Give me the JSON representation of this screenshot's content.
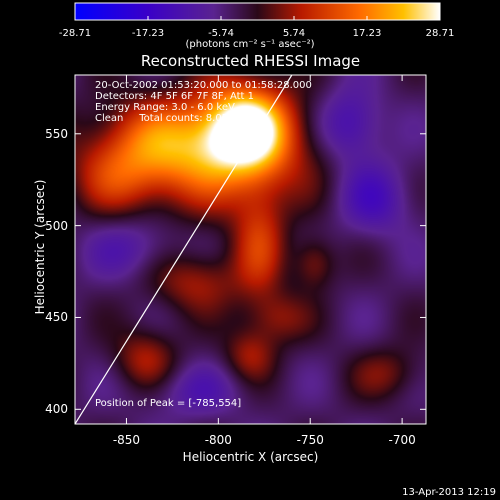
{
  "chart_data": {
    "type": "heatmap",
    "title": "Reconstructed RHESSI Image",
    "xlabel": "Heliocentric X (arcsec)",
    "ylabel": "Heliocentric Y (arcsec)",
    "xlim": [
      -878,
      -687
    ],
    "ylim": [
      392,
      582
    ],
    "xticks": [
      -850,
      -800,
      -750,
      -700
    ],
    "yticks": [
      400,
      450,
      500,
      550
    ],
    "colorbar": {
      "ticks": [
        "-28.71",
        "-17.23",
        "-5.74",
        "5.74",
        "17.23",
        "28.71"
      ],
      "units": "(photons cm⁻² s⁻¹ asec⁻²)",
      "range": [
        -28.71,
        28.71
      ]
    },
    "annotations": [
      "20-Oct-2002 01:53:20.000 to 01:58:28.000",
      "Detectors: 4F 5F 6F 7F 8F, Att 1",
      "Energy Range: 3.0 - 6.0 keV",
      "Clean     Total counts: 8.05e+05"
    ],
    "peak_label": "Position of Peak = [-785,554]",
    "peak": {
      "x": -785,
      "y": 554
    },
    "sources": [
      {
        "x": -785,
        "y": 554,
        "value": 28.7,
        "sx": 16,
        "sy": 16
      },
      {
        "x": -800,
        "y": 540,
        "value": 18,
        "sx": 34,
        "sy": 22
      },
      {
        "x": -835,
        "y": 545,
        "value": 12,
        "sx": 26,
        "sy": 16
      },
      {
        "x": -855,
        "y": 525,
        "value": 9,
        "sx": 18,
        "sy": 14
      },
      {
        "x": -778,
        "y": 490,
        "value": 12,
        "sx": 10,
        "sy": 22
      },
      {
        "x": -813,
        "y": 470,
        "value": 10,
        "sx": 18,
        "sy": 12
      },
      {
        "x": -768,
        "y": 450,
        "value": 8,
        "sx": 12,
        "sy": 10
      },
      {
        "x": -840,
        "y": 428,
        "value": 10,
        "sx": 12,
        "sy": 12
      },
      {
        "x": -783,
        "y": 430,
        "value": 9,
        "sx": 10,
        "sy": 10
      },
      {
        "x": -748,
        "y": 480,
        "value": 9,
        "sx": 8,
        "sy": 10
      },
      {
        "x": -708,
        "y": 420,
        "value": 7,
        "sx": 14,
        "sy": 10
      },
      {
        "x": -728,
        "y": 555,
        "value": -11,
        "sx": 12,
        "sy": 14
      },
      {
        "x": -715,
        "y": 515,
        "value": -9,
        "sx": 14,
        "sy": 14
      },
      {
        "x": -845,
        "y": 488,
        "value": -7,
        "sx": 18,
        "sy": 12
      },
      {
        "x": -815,
        "y": 410,
        "value": -6,
        "sx": 20,
        "sy": 10
      }
    ],
    "background": -4,
    "fov_line": [
      [
        -878,
        392
      ],
      [
        -760,
        582
      ]
    ]
  },
  "footer": "13-Apr-2013 12:19"
}
